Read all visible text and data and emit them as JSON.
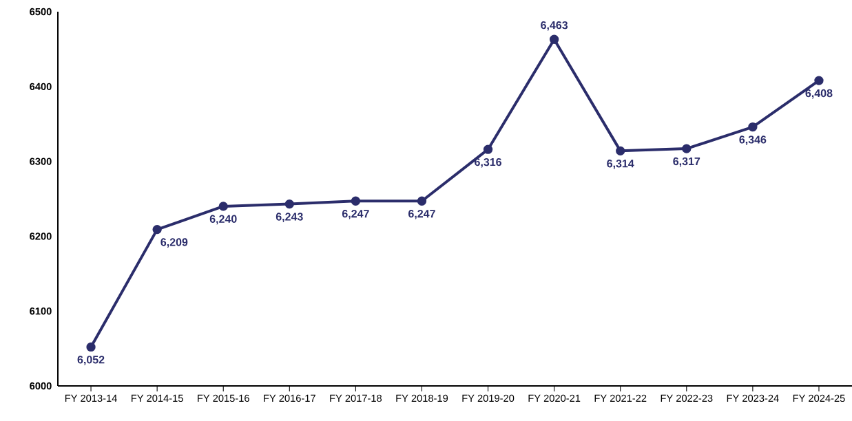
{
  "chart_data": {
    "type": "line",
    "categories": [
      "FY 2013-14",
      "FY 2014-15",
      "FY 2015-16",
      "FY 2016-17",
      "FY 2017-18",
      "FY 2018-19",
      "FY 2019-20",
      "FY 2020-21",
      "FY 2021-22",
      "FY 2022-23",
      "FY 2023-24",
      "FY 2024-25"
    ],
    "series": [
      {
        "color": "#2b2d6b",
        "values": [
          6052,
          6209,
          6240,
          6243,
          6247,
          6247,
          6316,
          6463,
          6314,
          6317,
          6346,
          6408
        ],
        "value_labels": [
          "6,052",
          "6,209",
          "6,240",
          "6,243",
          "6,247",
          "6,247",
          "6,316",
          "6,463",
          "6,314",
          "6,317",
          "6,346",
          "6,408"
        ]
      }
    ],
    "ylim": [
      6000,
      6500
    ],
    "yticks": [
      6000,
      6100,
      6200,
      6300,
      6400,
      6500
    ],
    "grid": false,
    "marker": "circle",
    "line_style": "solid"
  }
}
